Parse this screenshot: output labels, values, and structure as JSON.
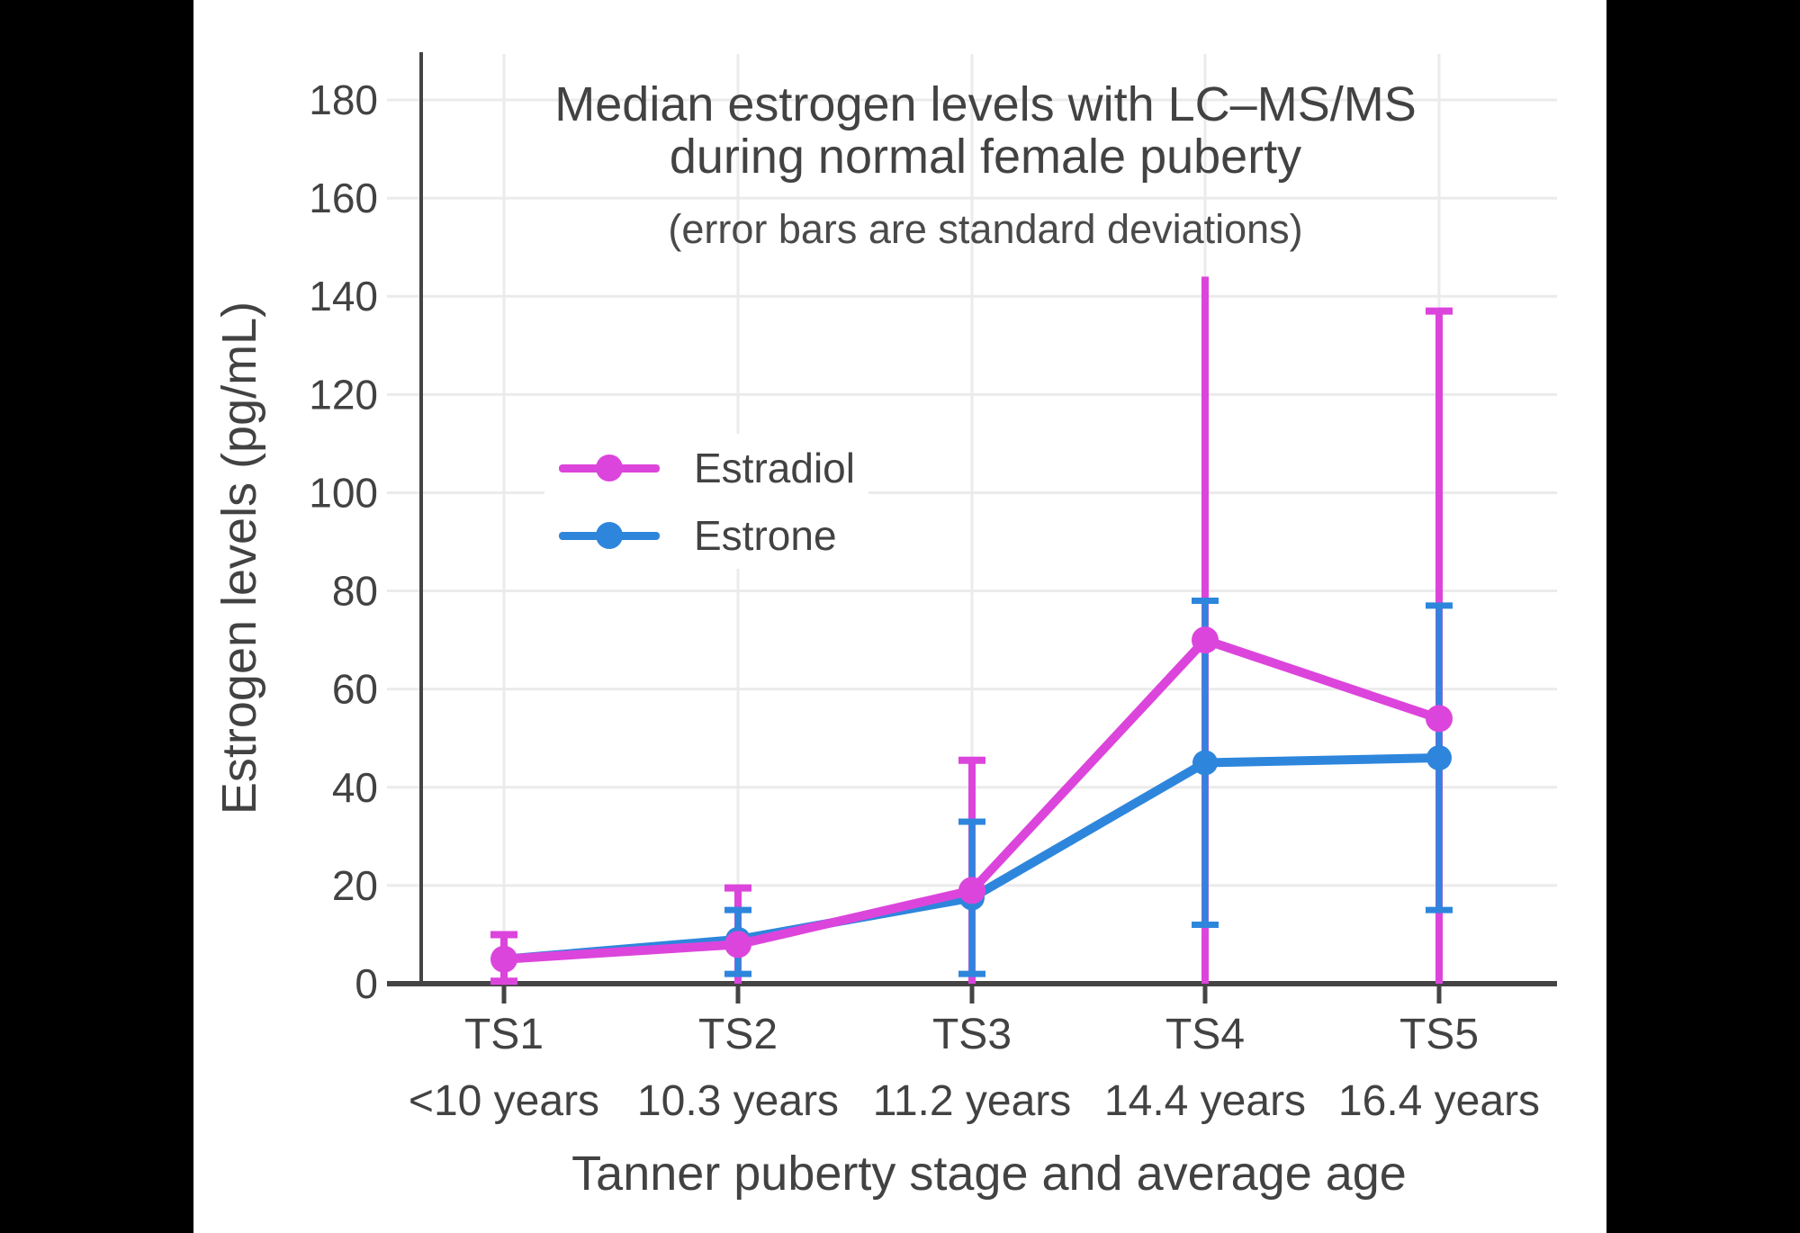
{
  "page": {
    "background_color": "#000000",
    "panel_color": "#ffffff"
  },
  "chart_data": {
    "type": "line",
    "title_line1": "Median estrogen levels with LC–MS/MS",
    "title_line2": "during normal female puberty",
    "subtitle": "(error bars are standard deviations)",
    "xlabel": "Tanner puberty stage and average age",
    "ylabel": "Estrogen levels (pg/mL)",
    "categories": [
      "TS1",
      "TS2",
      "TS3",
      "TS4",
      "TS5"
    ],
    "category_ages": [
      "<10 years",
      "10.3 years",
      "11.2 years",
      "14.4 years",
      "16.4 years"
    ],
    "y_ticks": [
      0,
      20,
      40,
      60,
      80,
      100,
      120,
      140,
      160,
      180
    ],
    "y_tick_labels": [
      "0",
      "20",
      "40",
      "60",
      "80",
      "100",
      "120",
      "140",
      "160",
      "180"
    ],
    "ylim": [
      0,
      189
    ],
    "grid": true,
    "legend_position": "inside-upper-left",
    "colors": {
      "axis": "#444444",
      "grid": "#ebebeb",
      "text": "#424242"
    },
    "series": [
      {
        "name": "Estradiol",
        "color": "#dc45dc",
        "values": [
          5,
          8,
          19,
          70,
          54
        ],
        "error_bars": [
          {
            "low": 0.5,
            "high": 10,
            "cap_low": true,
            "cap_high": true
          },
          {
            "low": 0,
            "high": 19.5,
            "cap_low": false,
            "cap_high": true
          },
          {
            "low": 0,
            "high": 45.5,
            "cap_low": false,
            "cap_high": true
          },
          {
            "low": 0,
            "high": 144,
            "cap_low": false,
            "cap_high": false
          },
          {
            "low": 0,
            "high": 137,
            "cap_low": false,
            "cap_high": true
          }
        ]
      },
      {
        "name": "Estrone",
        "color": "#2e86dc",
        "values": [
          5,
          9,
          17.5,
          45,
          46
        ],
        "error_bars": [
          null,
          {
            "low": 2,
            "high": 15,
            "cap_low": true,
            "cap_high": true
          },
          {
            "low": 2,
            "high": 33,
            "cap_low": true,
            "cap_high": true
          },
          {
            "low": 12,
            "high": 78,
            "cap_low": true,
            "cap_high": true
          },
          {
            "low": 15,
            "high": 77,
            "cap_low": true,
            "cap_high": true
          }
        ]
      }
    ]
  }
}
